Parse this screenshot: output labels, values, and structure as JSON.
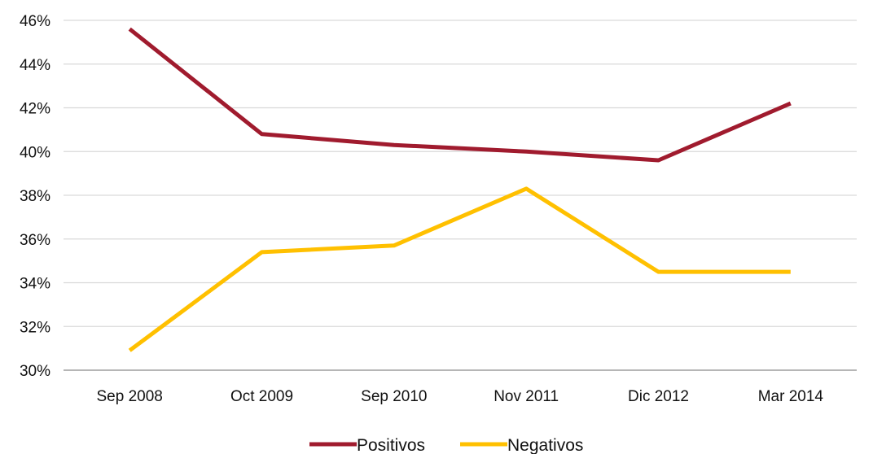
{
  "chart_data": {
    "type": "line",
    "categories": [
      "Sep 2008",
      "Oct 2009",
      "Sep 2010",
      "Nov 2011",
      "Dic 2012",
      "Mar 2014"
    ],
    "series": [
      {
        "name": "Positivos",
        "color": "#A01B2E",
        "values": [
          45.6,
          40.8,
          40.3,
          40.0,
          39.6,
          42.2
        ]
      },
      {
        "name": "Negativos",
        "color": "#FFC000",
        "values": [
          30.9,
          35.4,
          35.7,
          38.3,
          34.5,
          34.5
        ]
      }
    ],
    "ylim": [
      30,
      46
    ],
    "yticks": [
      30,
      32,
      34,
      36,
      38,
      40,
      42,
      44,
      46
    ],
    "ytick_labels": [
      "30%",
      "32%",
      "34%",
      "36%",
      "38%",
      "40%",
      "42%",
      "44%",
      "46%"
    ],
    "grid": true,
    "legend_position": "bottom"
  }
}
